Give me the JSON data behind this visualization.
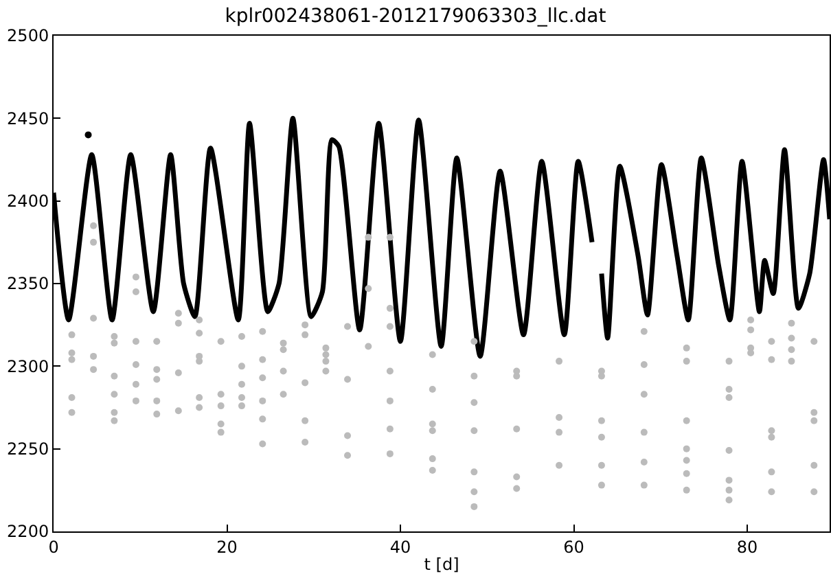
{
  "chart_data": {
    "type": "scatter",
    "title": "kplr002438061-2012179063303_llc.dat",
    "xlabel": "t [d]",
    "xlim": [
      0,
      89.5
    ],
    "xticks": [
      0,
      20,
      40,
      60,
      80
    ],
    "ylim": [
      2200,
      2500
    ],
    "yticks": [
      2200,
      2250,
      2300,
      2350,
      2400,
      2450,
      2500
    ],
    "marker": "circle",
    "series": [
      {
        "type": "line",
        "marker": "none",
        "color": "#000000",
        "x": [
          0,
          1.74,
          4.4,
          6.75,
          8.9,
          11.5,
          13.5,
          15.0,
          16.3,
          18.1,
          21.3,
          22.6,
          24.7,
          26.0,
          27.6,
          29.7,
          31.0,
          32.1,
          32.9,
          35.3,
          37.5,
          40.0,
          42.1,
          44.7,
          46.5,
          49.2,
          51.5,
          54.2,
          56.3,
          58.9,
          60.5,
          62.1,
          62.6,
          63.2,
          63.9,
          65.3,
          67.4,
          68.5,
          70.1,
          71.9,
          73.2,
          74.7,
          76.7,
          78.0,
          79.4,
          81.4,
          82.0,
          83.0,
          84.3,
          85.9,
          87.2,
          88.8,
          89.5
        ],
        "values": [
          2405,
          2328,
          2428,
          2328,
          2428,
          2333,
          2428,
          2350,
          2330,
          2432,
          2328,
          2447,
          2333,
          2350,
          2450,
          2330,
          2345,
          2437,
          2433,
          2322,
          2447,
          2315,
          2449,
          2312,
          2426,
          2306,
          2418,
          2319,
          2424,
          2319,
          2424,
          2375,
          null,
          2356,
          2317,
          2421,
          2367,
          2331,
          2422,
          2367,
          2328,
          2426,
          2361,
          2328,
          2424,
          2333,
          2364,
          2344,
          2431,
          2335,
          2356,
          2425,
          2389
        ]
      },
      {
        "color": "#000000",
        "x": [
          4.0
        ],
        "values": [
          2440
        ]
      },
      {
        "color": "#bbbbbb",
        "x": [
          2.1,
          2.1,
          2.1,
          2.1,
          2.1,
          4.6,
          4.6,
          4.6,
          4.6,
          4.6,
          7.0,
          7.0,
          7.0,
          7.0,
          7.0,
          7.0,
          9.5,
          9.5,
          9.5,
          9.5,
          9.5,
          9.5,
          11.9,
          11.9,
          11.9,
          11.9,
          11.9,
          14.4,
          14.4,
          14.4,
          14.4,
          16.8,
          16.8,
          16.8,
          16.8,
          16.8,
          16.8,
          19.3,
          19.3,
          19.3,
          19.3,
          19.3,
          21.7,
          21.7,
          21.7,
          21.7,
          21.7,
          24.1,
          24.1,
          24.1,
          24.1,
          24.1,
          24.1,
          26.5,
          26.5,
          26.5,
          26.5,
          29.0,
          29.0,
          29.0,
          29.0,
          29.0,
          31.4,
          31.4,
          31.4,
          31.4,
          33.9,
          33.9,
          33.9,
          33.9,
          36.3,
          36.3,
          36.3,
          38.8,
          38.8,
          38.8,
          38.8,
          38.8,
          38.8,
          38.8,
          43.7,
          43.7,
          43.7,
          43.7,
          43.7,
          43.7,
          48.5,
          48.5,
          48.5,
          48.5,
          48.5,
          48.5,
          48.5,
          53.4,
          53.4,
          53.4,
          53.4,
          53.4,
          58.3,
          58.3,
          58.3,
          58.3,
          63.2,
          63.2,
          63.2,
          63.2,
          63.2,
          63.2,
          68.1,
          68.1,
          68.1,
          68.1,
          68.1,
          68.1,
          73.0,
          73.0,
          73.0,
          73.0,
          73.0,
          73.0,
          73.0,
          77.9,
          77.9,
          77.9,
          77.9,
          77.9,
          77.9,
          77.9,
          80.4,
          80.4,
          80.4,
          80.4,
          82.8,
          82.8,
          82.8,
          82.8,
          82.8,
          82.8,
          85.1,
          85.1,
          85.1,
          85.1,
          87.7,
          87.7,
          87.7,
          87.7,
          87.7
        ],
        "values": [
          2319,
          2308,
          2304,
          2281,
          2272,
          2385,
          2375,
          2329,
          2306,
          2298,
          2318,
          2314,
          2294,
          2283,
          2272,
          2267,
          2354,
          2345,
          2315,
          2301,
          2289,
          2279,
          2315,
          2298,
          2292,
          2279,
          2271,
          2332,
          2326,
          2296,
          2273,
          2328,
          2320,
          2306,
          2303,
          2281,
          2275,
          2315,
          2283,
          2276,
          2265,
          2260,
          2318,
          2300,
          2289,
          2281,
          2276,
          2321,
          2304,
          2293,
          2279,
          2268,
          2253,
          2314,
          2310,
          2297,
          2283,
          2325,
          2319,
          2290,
          2267,
          2254,
          2311,
          2307,
          2303,
          2297,
          2324,
          2292,
          2258,
          2246,
          2378,
          2347,
          2312,
          2378,
          2335,
          2324,
          2297,
          2279,
          2262,
          2247,
          2307,
          2286,
          2265,
          2261,
          2244,
          2237,
          2315,
          2294,
          2278,
          2261,
          2236,
          2224,
          2215,
          2297,
          2294,
          2262,
          2233,
          2226,
          2303,
          2269,
          2260,
          2240,
          2297,
          2294,
          2267,
          2257,
          2240,
          2228,
          2321,
          2301,
          2283,
          2260,
          2242,
          2228,
          2311,
          2303,
          2267,
          2250,
          2243,
          2235,
          2225,
          2303,
          2286,
          2281,
          2249,
          2231,
          2225,
          2219,
          2328,
          2322,
          2311,
          2308,
          2315,
          2304,
          2261,
          2257,
          2236,
          2224,
          2326,
          2317,
          2310,
          2303,
          2315,
          2272,
          2267,
          2240,
          2224
        ]
      }
    ]
  }
}
